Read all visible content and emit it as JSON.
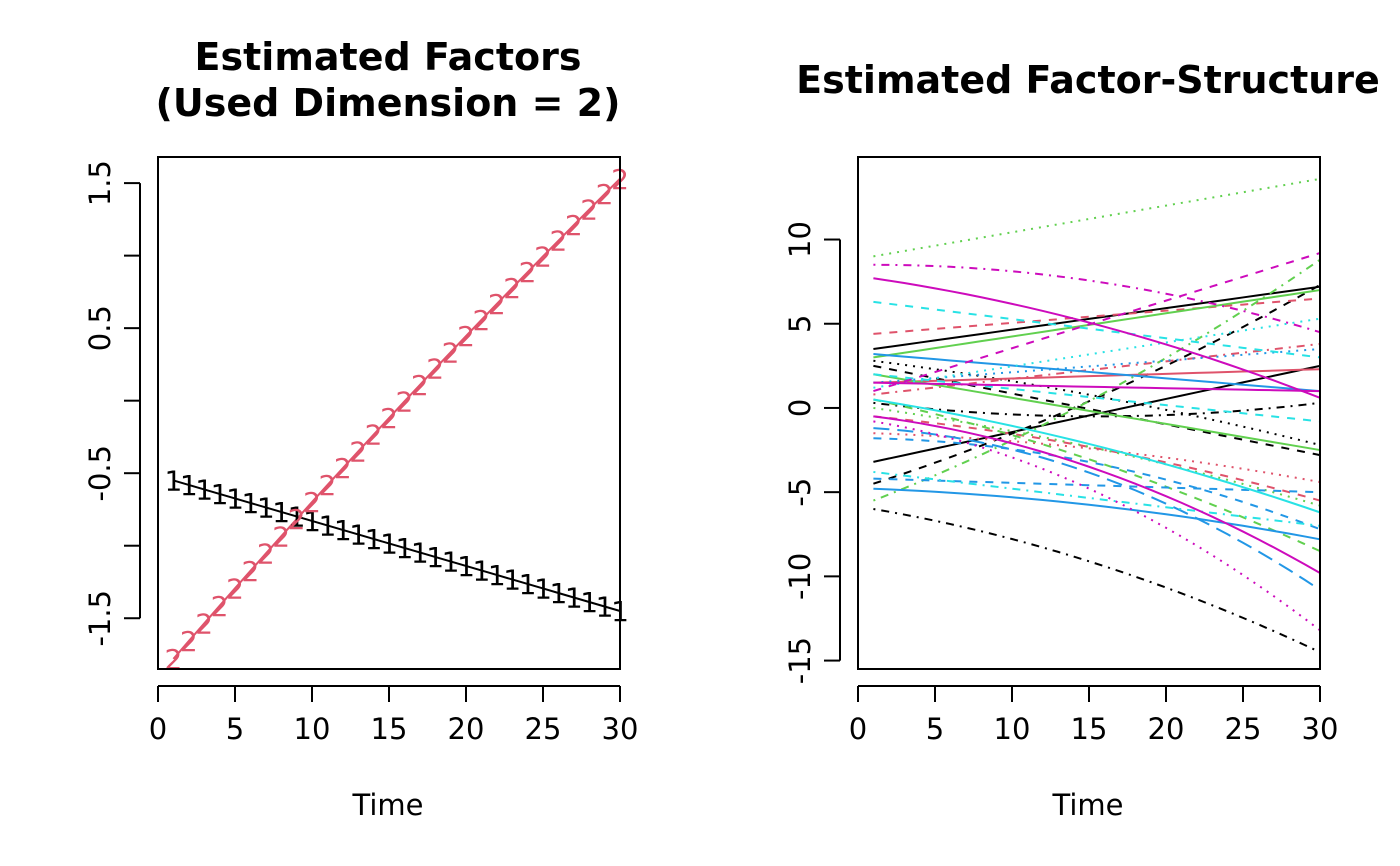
{
  "chart_data": [
    {
      "type": "line",
      "title_lines": [
        "Estimated Factors",
        "(Used Dimension = 2)"
      ],
      "xlabel": "Time",
      "ylabel": "",
      "xlim": [
        0,
        30
      ],
      "ylim": [
        -1.85,
        1.68
      ],
      "x_ticks": [
        0,
        5,
        10,
        15,
        20,
        25,
        30
      ],
      "y_ticks": [
        -2,
        -1.5,
        -1,
        -0.5,
        0,
        0.5,
        1,
        1.5
      ],
      "y_tick_labels": [
        "",
        "-1.5",
        "",
        "-0.5",
        "",
        "0.5",
        "",
        "1.5"
      ],
      "x": [
        1,
        30
      ],
      "series": [
        {
          "symbol": "1",
          "color": "#000000",
          "start": -0.55,
          "end": -1.45,
          "curve": 0.0
        },
        {
          "symbol": "2",
          "color": "#DF536B",
          "start": -1.78,
          "end": 1.53,
          "curve": -0.25
        }
      ]
    },
    {
      "type": "line",
      "title": "Estimated Factor-Structure",
      "xlabel": "Time",
      "ylabel": "",
      "xlim": [
        0,
        30
      ],
      "ylim": [
        -15.5,
        14.9
      ],
      "x_ticks": [
        0,
        5,
        10,
        15,
        20,
        25,
        30
      ],
      "y_ticks": [
        -15,
        -10,
        -5,
        0,
        5,
        10
      ],
      "y_tick_labels": [
        "-15",
        "-10",
        "-5",
        "0",
        "5",
        "10"
      ],
      "x": [
        1,
        30
      ],
      "series": [
        {
          "start": 3.5,
          "end": 7.2,
          "curve": 0.0,
          "color": "#000000",
          "lty": 1
        },
        {
          "start": -4.5,
          "end": 7.3,
          "curve": 0.8,
          "color": "#000000",
          "lty": 2
        },
        {
          "start": 2.8,
          "end": -2.2,
          "curve": -0.4,
          "color": "#000000",
          "lty": 3
        },
        {
          "start": -6.0,
          "end": -14.5,
          "curve": -1.0,
          "color": "#000000",
          "lty": 4
        },
        {
          "start": -3.2,
          "end": 2.5,
          "curve": 0.0,
          "color": "#000000",
          "lty": 1
        },
        {
          "start": 2.5,
          "end": -2.8,
          "curve": 0.0,
          "color": "#000000",
          "lty": 2
        },
        {
          "start": 0.3,
          "end": 0.3,
          "curve": 0.8,
          "color": "#000000",
          "lty": 4
        },
        {
          "start": 4.4,
          "end": 6.5,
          "curve": 0.0,
          "color": "#DF536B",
          "lty": 2
        },
        {
          "start": -1.5,
          "end": -4.4,
          "curve": -0.5,
          "color": "#DF536B",
          "lty": 3
        },
        {
          "start": 1.5,
          "end": 2.3,
          "curve": 0.0,
          "color": "#DF536B",
          "lty": 1
        },
        {
          "start": -0.5,
          "end": -5.5,
          "curve": -0.6,
          "color": "#DF536B",
          "lty": 2
        },
        {
          "start": 0.8,
          "end": 3.8,
          "curve": 0.0,
          "color": "#DF536B",
          "lty": 4
        },
        {
          "start": 3.0,
          "end": 7.0,
          "curve": 0.0,
          "color": "#61D04F",
          "lty": 1
        },
        {
          "start": -5.5,
          "end": 8.8,
          "curve": 1.0,
          "color": "#61D04F",
          "lty": 4
        },
        {
          "start": 9.0,
          "end": 13.6,
          "curve": 0.0,
          "color": "#61D04F",
          "lty": 3
        },
        {
          "start": 0.5,
          "end": -8.5,
          "curve": -0.8,
          "color": "#61D04F",
          "lty": 2
        },
        {
          "start": 2.0,
          "end": -2.5,
          "curve": 0.0,
          "color": "#61D04F",
          "lty": 1
        },
        {
          "start": 0.0,
          "end": -5.8,
          "curve": -0.5,
          "color": "#61D04F",
          "lty": 3
        },
        {
          "start": 3.2,
          "end": 1.0,
          "curve": 0.0,
          "color": "#2297E6",
          "lty": 1
        },
        {
          "start": -4.2,
          "end": -5.0,
          "curve": 0.0,
          "color": "#2297E6",
          "lty": 2
        },
        {
          "start": -1.2,
          "end": -10.8,
          "curve": -2.0,
          "color": "#2297E6",
          "lty": 5
        },
        {
          "start": -4.8,
          "end": -7.8,
          "curve": -0.5,
          "color": "#2297E6",
          "lty": 1
        },
        {
          "start": 1.5,
          "end": 3.5,
          "curve": 0.0,
          "color": "#2297E6",
          "lty": 3
        },
        {
          "start": -1.8,
          "end": -7.2,
          "curve": -1.2,
          "color": "#2297E6",
          "lty": 2
        },
        {
          "start": 6.3,
          "end": 3.0,
          "curve": 0.0,
          "color": "#28E2E5",
          "lty": 2
        },
        {
          "start": 0.5,
          "end": -6.2,
          "curve": -0.6,
          "color": "#28E2E5",
          "lty": 1
        },
        {
          "start": -3.8,
          "end": -7.0,
          "curve": 0.0,
          "color": "#28E2E5",
          "lty": 4
        },
        {
          "start": 1.2,
          "end": 5.3,
          "curve": 0.0,
          "color": "#28E2E5",
          "lty": 3
        },
        {
          "start": 2.0,
          "end": -0.8,
          "curve": 0.0,
          "color": "#28E2E5",
          "lty": 2
        },
        {
          "start": 7.7,
          "end": 0.6,
          "curve": -0.8,
          "color": "#CD0BBC",
          "lty": 1
        },
        {
          "start": 8.5,
          "end": 4.5,
          "curve": -1.0,
          "color": "#CD0BBC",
          "lty": 4
        },
        {
          "start": 1.0,
          "end": 9.2,
          "curve": 0.0,
          "color": "#CD0BBC",
          "lty": 2
        },
        {
          "start": -0.5,
          "end": -9.8,
          "curve": -1.5,
          "color": "#CD0BBC",
          "lty": 1
        },
        {
          "start": -0.8,
          "end": -13.2,
          "curve": -2.0,
          "color": "#CD0BBC",
          "lty": 3
        },
        {
          "start": 1.5,
          "end": 1.0,
          "curve": 0.0,
          "color": "#CD0BBC",
          "lty": 1
        }
      ]
    }
  ]
}
